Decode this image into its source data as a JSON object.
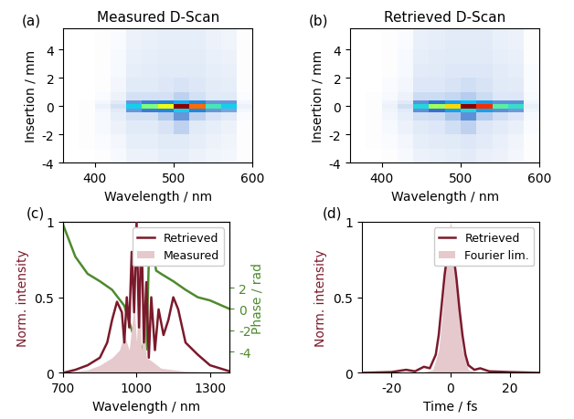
{
  "chart_data": [
    {
      "type": "heatmap",
      "label": "(a)",
      "title": "Measured D-Scan",
      "x_label": "Wavelength / nm",
      "y_label": "Insertion / mm",
      "xlim": [
        360,
        600
      ],
      "xticks": [
        400,
        500,
        600
      ],
      "ylim": [
        -4,
        5.5
      ],
      "yticks": [
        -4,
        -2,
        0,
        2,
        4
      ],
      "x_edges": [
        360,
        380,
        400,
        420,
        440,
        460,
        480,
        500,
        520,
        540,
        560,
        580,
        600
      ],
      "y_edges": [
        -4,
        -3,
        -2,
        -1,
        -0.4,
        -0.15,
        0.15,
        0.4,
        1,
        2,
        3,
        4,
        5.5
      ],
      "cells": [
        [
          0.02,
          0.02,
          0.03,
          0.05,
          0.08,
          0.08,
          0.1,
          0.1,
          0.08,
          0.07,
          0.06,
          0.03
        ],
        [
          0.02,
          0.03,
          0.04,
          0.06,
          0.1,
          0.1,
          0.12,
          0.12,
          0.1,
          0.08,
          0.07,
          0.03
        ],
        [
          0.02,
          0.03,
          0.05,
          0.08,
          0.12,
          0.12,
          0.14,
          0.18,
          0.12,
          0.1,
          0.08,
          0.03
        ],
        [
          0.02,
          0.03,
          0.05,
          0.1,
          0.15,
          0.15,
          0.2,
          0.3,
          0.18,
          0.14,
          0.12,
          0.04
        ],
        [
          0.02,
          0.03,
          0.06,
          0.12,
          0.3,
          0.35,
          0.4,
          0.5,
          0.4,
          0.3,
          0.28,
          0.06
        ],
        [
          0.02,
          0.03,
          0.08,
          0.15,
          0.5,
          0.6,
          0.7,
          0.95,
          0.8,
          0.55,
          0.5,
          0.08
        ],
        [
          0.02,
          0.03,
          0.06,
          0.12,
          0.3,
          0.35,
          0.4,
          0.45,
          0.4,
          0.3,
          0.3,
          0.06
        ],
        [
          0.02,
          0.02,
          0.04,
          0.08,
          0.15,
          0.15,
          0.15,
          0.18,
          0.15,
          0.12,
          0.12,
          0.04
        ],
        [
          0.02,
          0.02,
          0.03,
          0.06,
          0.12,
          0.12,
          0.13,
          0.14,
          0.13,
          0.11,
          0.1,
          0.03
        ],
        [
          0.02,
          0.02,
          0.03,
          0.05,
          0.1,
          0.11,
          0.12,
          0.12,
          0.12,
          0.1,
          0.09,
          0.03
        ],
        [
          0.02,
          0.02,
          0.03,
          0.05,
          0.09,
          0.1,
          0.11,
          0.11,
          0.11,
          0.09,
          0.08,
          0.03
        ],
        [
          0.02,
          0.02,
          0.03,
          0.04,
          0.08,
          0.09,
          0.1,
          0.1,
          0.1,
          0.08,
          0.07,
          0.03
        ]
      ]
    },
    {
      "type": "heatmap",
      "label": "(b)",
      "title": "Retrieved D-Scan",
      "x_label": "Wavelength / nm",
      "y_label": "Insertion / mm",
      "xlim": [
        360,
        600
      ],
      "xticks": [
        400,
        500,
        600
      ],
      "ylim": [
        -4,
        5.5
      ],
      "yticks": [
        -4,
        -2,
        0,
        2,
        4
      ],
      "x_edges": [
        360,
        380,
        400,
        420,
        440,
        460,
        480,
        500,
        520,
        540,
        560,
        580,
        600
      ],
      "y_edges": [
        -4,
        -3,
        -2,
        -1,
        -0.4,
        -0.15,
        0.15,
        0.4,
        1,
        2,
        3,
        4,
        5.5
      ],
      "cells": [
        [
          0.01,
          0.01,
          0.02,
          0.04,
          0.07,
          0.08,
          0.09,
          0.1,
          0.08,
          0.07,
          0.05,
          0.02
        ],
        [
          0.01,
          0.02,
          0.03,
          0.05,
          0.09,
          0.1,
          0.11,
          0.12,
          0.1,
          0.08,
          0.06,
          0.02
        ],
        [
          0.01,
          0.02,
          0.04,
          0.07,
          0.11,
          0.12,
          0.14,
          0.17,
          0.12,
          0.1,
          0.08,
          0.03
        ],
        [
          0.01,
          0.02,
          0.05,
          0.09,
          0.14,
          0.15,
          0.2,
          0.3,
          0.18,
          0.14,
          0.12,
          0.04
        ],
        [
          0.01,
          0.02,
          0.06,
          0.11,
          0.3,
          0.35,
          0.42,
          0.5,
          0.42,
          0.3,
          0.28,
          0.06
        ],
        [
          0.01,
          0.02,
          0.07,
          0.14,
          0.5,
          0.62,
          0.72,
          0.93,
          0.82,
          0.55,
          0.52,
          0.08
        ],
        [
          0.01,
          0.02,
          0.06,
          0.11,
          0.3,
          0.36,
          0.42,
          0.46,
          0.41,
          0.3,
          0.3,
          0.06
        ],
        [
          0.01,
          0.02,
          0.04,
          0.07,
          0.15,
          0.15,
          0.16,
          0.18,
          0.15,
          0.12,
          0.12,
          0.04
        ],
        [
          0.01,
          0.01,
          0.03,
          0.05,
          0.12,
          0.12,
          0.13,
          0.14,
          0.13,
          0.11,
          0.1,
          0.03
        ],
        [
          0.01,
          0.01,
          0.02,
          0.04,
          0.1,
          0.11,
          0.12,
          0.12,
          0.12,
          0.1,
          0.09,
          0.03
        ],
        [
          0.01,
          0.01,
          0.02,
          0.04,
          0.09,
          0.1,
          0.11,
          0.11,
          0.11,
          0.09,
          0.08,
          0.02
        ],
        [
          0.01,
          0.01,
          0.02,
          0.03,
          0.08,
          0.09,
          0.1,
          0.1,
          0.1,
          0.08,
          0.07,
          0.02
        ]
      ]
    },
    {
      "type": "line",
      "label": "(c)",
      "x_label": "Wavelength / nm",
      "y_label": "Norm. intensity",
      "y2_label": "Phase / rad",
      "xlim": [
        700,
        1380
      ],
      "xticks": [
        700,
        1000,
        1300
      ],
      "ylim": [
        0,
        1
      ],
      "yticks": [
        0,
        0.5,
        1
      ],
      "y2lim": [
        -6,
        8.2
      ],
      "y2ticks": [
        -4,
        -2,
        0,
        2
      ],
      "legend": "upper right",
      "series": [
        {
          "name": "Retrieved",
          "type": "line",
          "color": "#7b1a2c",
          "x": [
            700,
            750,
            800,
            850,
            880,
            900,
            920,
            940,
            950,
            960,
            970,
            980,
            990,
            1000,
            1010,
            1020,
            1030,
            1040,
            1050,
            1060,
            1075,
            1090,
            1110,
            1130,
            1150,
            1170,
            1200,
            1250,
            1300,
            1380
          ],
          "values": [
            0,
            0.02,
            0.05,
            0.1,
            0.2,
            0.35,
            0.47,
            0.4,
            0.2,
            0.5,
            0.3,
            0.8,
            0.4,
            1.0,
            0.3,
            0.95,
            0.2,
            0.6,
            0.1,
            0.5,
            0.15,
            0.42,
            0.25,
            0.35,
            0.5,
            0.42,
            0.2,
            0.12,
            0.05,
            0.01
          ]
        },
        {
          "name": "Measured",
          "type": "area",
          "color": "#e6c9cd",
          "x": [
            700,
            800,
            850,
            900,
            930,
            950,
            970,
            990,
            1000,
            1010,
            1020,
            1030,
            1040,
            1060,
            1100,
            1200,
            1380
          ],
          "values": [
            0,
            0.02,
            0.05,
            0.1,
            0.15,
            0.25,
            0.15,
            0.45,
            0.2,
            0.6,
            0.15,
            0.35,
            0.1,
            0.08,
            0.03,
            0.01,
            0
          ]
        },
        {
          "type": "line",
          "axis": "y2",
          "color": "#4e8a2e",
          "x": [
            700,
            750,
            800,
            850,
            900,
            950,
            970,
            990,
            1000,
            1010,
            1020,
            1030,
            1040,
            1050,
            1060,
            1080,
            1100,
            1150,
            1200,
            1250,
            1300,
            1350,
            1380
          ],
          "values": [
            7.9,
            4.9,
            3.3,
            2.6,
            1.8,
            0.3,
            -1.2,
            -2.7,
            -3.6,
            -3.0,
            -4.0,
            -3.2,
            -3.8,
            4.5,
            6.3,
            3.6,
            3.3,
            2.6,
            1.8,
            1.1,
            0.8,
            0.3,
            0
          ]
        }
      ]
    },
    {
      "type": "line",
      "label": "(d)",
      "x_label": "Time / fs",
      "y_label": "Norm. intensity",
      "xlim": [
        -30,
        30
      ],
      "xticks": [
        -20,
        0,
        20
      ],
      "ylim": [
        0,
        1
      ],
      "yticks": [
        0,
        0.5,
        1
      ],
      "legend": "upper right",
      "series": [
        {
          "name": "Retrieved",
          "type": "line",
          "color": "#7b1a2c",
          "x": [
            -30,
            -20,
            -15,
            -12,
            -9,
            -7,
            -5,
            -4,
            -3,
            -2,
            -1,
            0,
            1,
            2,
            3,
            4,
            5,
            6,
            8,
            10,
            13,
            20,
            30
          ],
          "values": [
            0,
            0.005,
            0.02,
            0.01,
            0.04,
            0.03,
            0.12,
            0.25,
            0.45,
            0.65,
            0.8,
            0.83,
            0.78,
            0.62,
            0.42,
            0.25,
            0.12,
            0.05,
            0.02,
            0.03,
            0.01,
            0.005,
            0
          ]
        },
        {
          "name": "Fourier lim.",
          "type": "area",
          "color": "#e6c9cd",
          "x": [
            -30,
            -10,
            -6,
            -4,
            -3,
            -2,
            -1,
            0,
            1,
            2,
            3,
            4,
            6,
            10,
            30
          ],
          "values": [
            0,
            0,
            0.02,
            0.15,
            0.35,
            0.6,
            0.88,
            1,
            0.88,
            0.6,
            0.35,
            0.15,
            0.02,
            0,
            0
          ]
        }
      ]
    }
  ]
}
